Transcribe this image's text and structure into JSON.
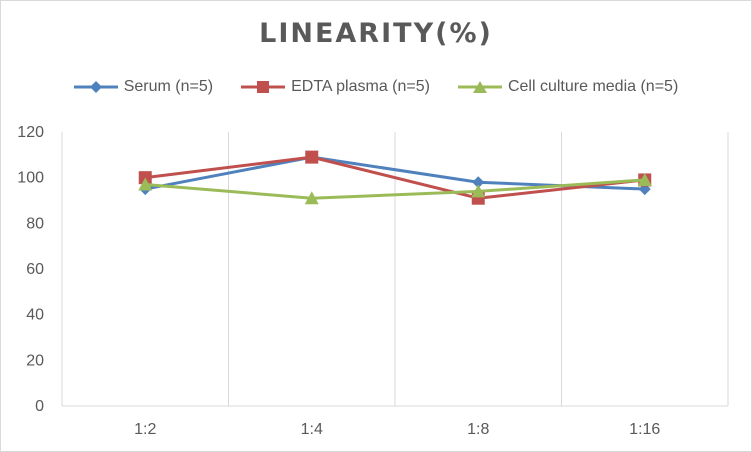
{
  "chart_data": {
    "type": "line",
    "title": "LINEARITY(%)",
    "categories": [
      "1:2",
      "1:4",
      "1:8",
      "1:16"
    ],
    "ylim": [
      0,
      120
    ],
    "yticks": [
      0,
      20,
      40,
      60,
      80,
      100,
      120
    ],
    "grid": "vertical",
    "legend_position": "top",
    "series": [
      {
        "name": "Serum (n=5)",
        "values": [
          95,
          109,
          98,
          95
        ],
        "color": "#4f81bd",
        "marker": "diamond"
      },
      {
        "name": "EDTA plasma (n=5)",
        "values": [
          100,
          109,
          91,
          99
        ],
        "color": "#c0504d",
        "marker": "square"
      },
      {
        "name": "Cell culture media (n=5)",
        "values": [
          97,
          91,
          94,
          99
        ],
        "color": "#9bbb59",
        "marker": "triangle"
      }
    ]
  }
}
